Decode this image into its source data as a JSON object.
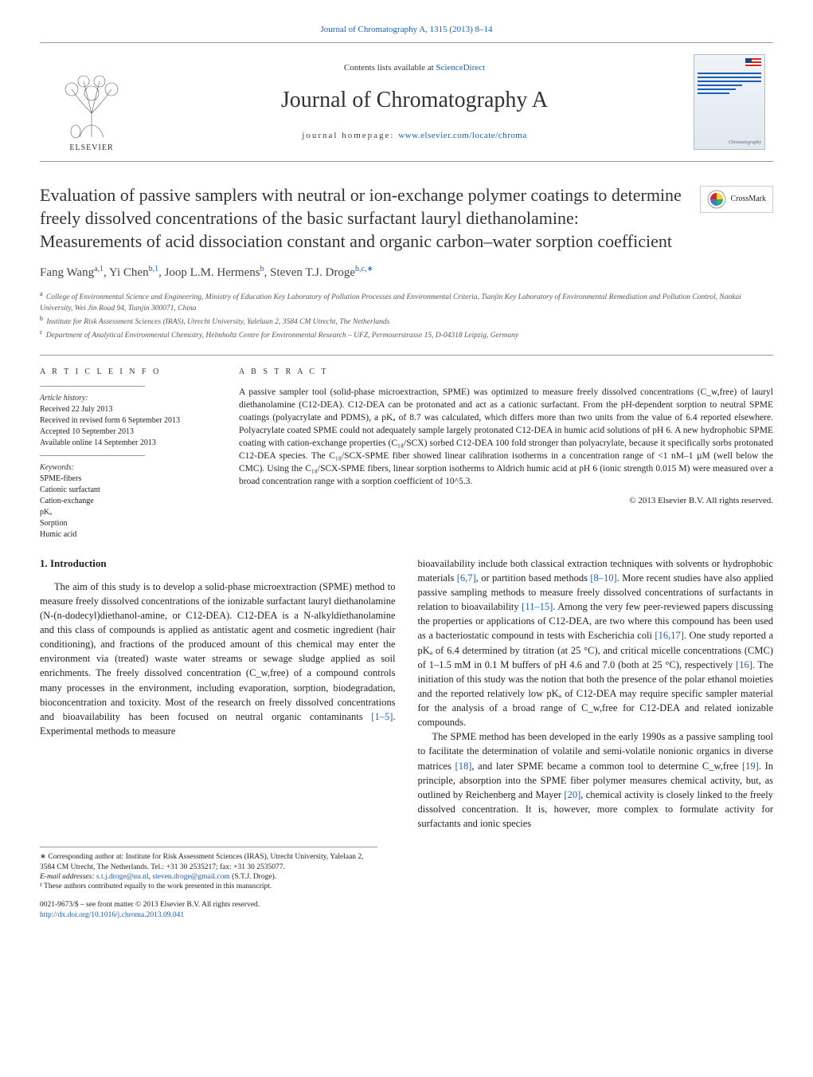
{
  "top_link": "Journal of Chromatography A, 1315 (2013) 8–14",
  "header": {
    "contents_prefix": "Contents lists available at ",
    "contents_link": "ScienceDirect",
    "journal_title": "Journal of Chromatography A",
    "homepage_prefix": "journal homepage: ",
    "homepage_link": "www.elsevier.com/locate/chroma",
    "publisher": "ELSEVIER"
  },
  "crossmark_label": "CrossMark",
  "title": "Evaluation of passive samplers with neutral or ion-exchange polymer coatings to determine freely dissolved concentrations of the basic surfactant lauryl diethanolamine: Measurements of acid dissociation constant and organic carbon–water sorption coefficient",
  "authors_html": "Fang Wang<sup class='aff-sup'>a,1</sup>, Yi Chen<sup class='aff-sup'>b,1</sup>, Joop L.M. Hermens<sup class='aff-sup'>b</sup>, Steven T.J. Droge<sup class='aff-sup'>b,c,∗</sup>",
  "affiliations": [
    {
      "sup": "a",
      "text": "College of Environmental Science and Engineering, Ministry of Education Key Laboratory of Pollution Processes and Environmental Criteria, Tianjin Key Laboratory of Environmental Remediation and Pollution Control, Nankai University, Wei Jin Road 94, Tianjin 300071, China"
    },
    {
      "sup": "b",
      "text": "Institute for Risk Assessment Sciences (IRAS), Utrecht University, Yalelaan 2, 3584 CM Utrecht, The Netherlands"
    },
    {
      "sup": "c",
      "text": "Department of Analytical Environmental Chemistry, Helmholtz Centre for Environmental Research – UFZ, Permoserstrasse 15, D-04318 Leipzig, Germany"
    }
  ],
  "article_info": {
    "label": "A R T I C L E   I N F O",
    "history_label": "Article history:",
    "history": [
      "Received 22 July 2013",
      "Received in revised form 6 September 2013",
      "Accepted 10 September 2013",
      "Available online 14 September 2013"
    ],
    "keywords_label": "Keywords:",
    "keywords": [
      "SPME-fibers",
      "Cationic surfactant",
      "Cation-exchange",
      "pKₐ",
      "Sorption",
      "Humic acid"
    ]
  },
  "abstract": {
    "label": "A B S T R A C T",
    "text": "A passive sampler tool (solid-phase microextraction, SPME) was optimized to measure freely dissolved concentrations (C_w,free) of lauryl diethanolamine (C12-DEA). C12-DEA can be protonated and act as a cationic surfactant. From the pH-dependent sorption to neutral SPME coatings (polyacrylate and PDMS), a pKₐ of 8.7 was calculated, which differs more than two units from the value of 6.4 reported elsewhere. Polyacrylate coated SPME could not adequately sample largely protonated C12-DEA in humic acid solutions of pH 6. A new hydrophobic SPME coating with cation-exchange properties (C₁₈/SCX) sorbed C12-DEA 100 fold stronger than polyacrylate, because it specifically sorbs protonated C12-DEA species. The C₁₈/SCX-SPME fiber showed linear calibration isotherms in a concentration range of <1 nM–1 µM (well below the CMC). Using the C₁₈/SCX-SPME fibers, linear sorption isotherms to Aldrich humic acid at pH 6 (ionic strength 0.015 M) were measured over a broad concentration range with a sorption coefficient of 10^5.3.",
    "copyright": "© 2013 Elsevier B.V. All rights reserved."
  },
  "intro": {
    "heading": "1.  Introduction",
    "col1_p1": "The aim of this study is to develop a solid-phase microextraction (SPME) method to measure freely dissolved concentrations of the ionizable surfactant lauryl diethanolamine (N-(n-dodecyl)diethanol-amine, or C12-DEA). C12-DEA is a N-alkyldiethanolamine and this class of compounds is applied as antistatic agent and cosmetic ingredient (hair conditioning), and fractions of the produced amount of this chemical may enter the environment via (treated) waste water streams or sewage sludge applied as soil enrichments. The freely dissolved concentration (C_w,free) of a compound controls many processes in the environment, including evaporation, sorption, biodegradation, bioconcentration and toxicity. Most of the research on freely dissolved concentrations and bioavailability has been focused on neutral organic contaminants ",
    "col1_ref1": "[1–5]",
    "col1_p1_tail": ". Experimental methods to measure",
    "col2_p1_a": "bioavailability include both classical extraction techniques with solvents or hydrophobic materials ",
    "col2_ref1": "[6,7]",
    "col2_p1_b": ", or partition based methods ",
    "col2_ref2": "[8–10]",
    "col2_p1_c": ". More recent studies have also applied passive sampling methods to measure freely dissolved concentrations of surfactants in relation to bioavailability ",
    "col2_ref3": "[11–15]",
    "col2_p1_d": ". Among the very few peer-reviewed papers discussing the properties or applications of C12-DEA, are two where this compound has been used as a bacteriostatic compound in tests with Escherichia coli ",
    "col2_ref4": "[16,17]",
    "col2_p1_e": ". One study reported a pKₐ of 6.4 determined by titration (at 25 °C), and critical micelle concentrations (CMC) of 1–1.5 mM in 0.1 M buffers of pH 4.6 and 7.0 (both at 25 °C), respectively ",
    "col2_ref5": "[16]",
    "col2_p1_f": ". The initiation of this study was the notion that both the presence of the polar ethanol moieties and the reported relatively low pKₐ of C12-DEA may require specific sampler material for the analysis of a broad range of C_w,free for C12-DEA and related ionizable compounds.",
    "col2_p2_a": "The SPME method has been developed in the early 1990s as a passive sampling tool to facilitate the determination of volatile and semi-volatile nonionic organics in diverse matrices ",
    "col2_ref6": "[18]",
    "col2_p2_b": ", and later SPME became a common tool to determine C_w,free ",
    "col2_ref7": "[19]",
    "col2_p2_c": ". In principle, absorption into the SPME fiber polymer measures chemical activity, but, as outlined by Reichenberg and Mayer ",
    "col2_ref8": "[20]",
    "col2_p2_d": ", chemical activity is closely linked to the freely dissolved concentration. It is, however, more complex to formulate activity for surfactants and ionic species"
  },
  "footnotes": {
    "corr": "∗ Corresponding author at: Institute for Risk Assessment Sciences (IRAS), Utrecht University, Yalelaan 2, 3584 CM Utrecht, The Netherlands. Tel.: +31 30 2535217; fax: +31 30 2535077.",
    "email_label": "E-mail addresses: ",
    "email1": "s.t.j.droge@uu.nl",
    "email_sep": ", ",
    "email2": "steven.droge@gmail.com",
    "email_tail": " (S.T.J. Droge).",
    "note1": "¹ These authors contributed equally to the work presented in this manuscript."
  },
  "bottom": {
    "issn": "0021-9673/$ – see front matter © 2013 Elsevier B.V. All rights reserved.",
    "doi": "http://dx.doi.org/10.1016/j.chroma.2013.09.041"
  },
  "colors": {
    "link": "#1a5fb4",
    "text": "#222222",
    "rule": "#999999",
    "orange": "#e8711a"
  }
}
